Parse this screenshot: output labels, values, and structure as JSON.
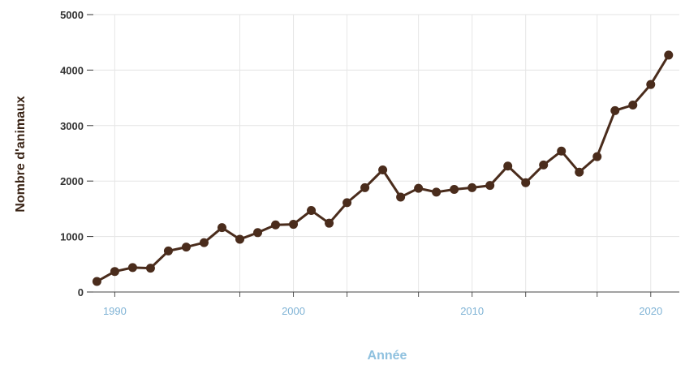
{
  "chart_data": {
    "type": "line",
    "title": "",
    "xlabel": "Année",
    "ylabel": "Nombre d'animaux",
    "xlim": [
      1988.8,
      2021.6
    ],
    "ylim": [
      0,
      5000
    ],
    "yticks": [
      0,
      1000,
      2000,
      3000,
      4000,
      5000
    ],
    "xticks": [
      1990,
      2000,
      2010,
      2020
    ],
    "minor_xticks": [
      1997,
      2003,
      2007,
      2013,
      2017
    ],
    "grid": true,
    "legend": "none",
    "series": [
      {
        "color": "#4a2c1c",
        "x": [
          1989,
          1990,
          1991,
          1992,
          1993,
          1994,
          1995,
          1996,
          1997,
          1998,
          1999,
          2000,
          2001,
          2002,
          2003,
          2004,
          2005,
          2006,
          2007,
          2008,
          2009,
          2010,
          2011,
          2012,
          2013,
          2014,
          2015,
          2016,
          2017,
          2018,
          2019,
          2020,
          2021
        ],
        "y": [
          190,
          370,
          440,
          430,
          740,
          810,
          890,
          1160,
          950,
          1070,
          1210,
          1220,
          1470,
          1240,
          1610,
          1880,
          2200,
          1710,
          1870,
          1800,
          1850,
          1880,
          1920,
          2270,
          1970,
          2290,
          2540,
          2160,
          2440,
          3270,
          3370,
          3740,
          4270
        ]
      }
    ]
  }
}
